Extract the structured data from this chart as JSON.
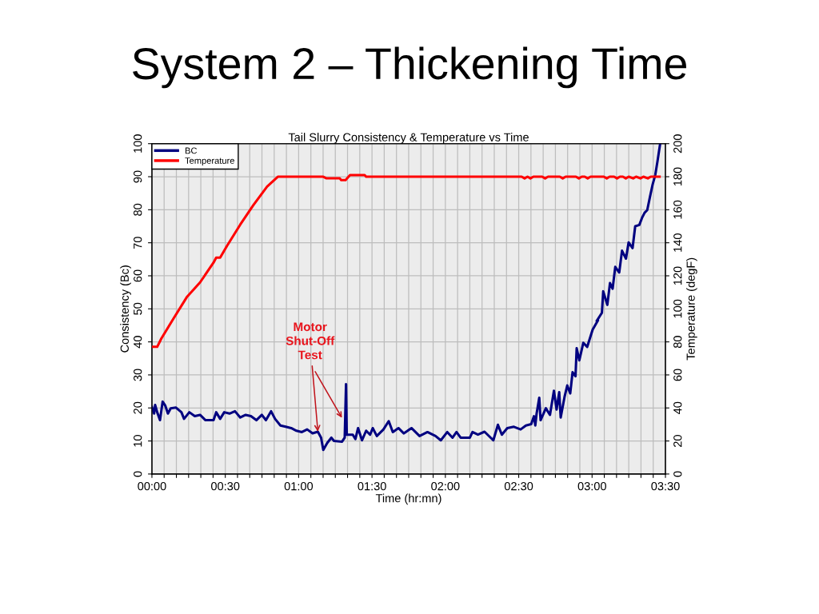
{
  "chart_data": {
    "type": "line",
    "title": "System 2 – Thickening Time",
    "subtitle": "Tail Slurry Consistency & Temperature vs Time",
    "xlabel": "Time (hr:mn)",
    "ylabel": "Consistency (Bc)",
    "y2label": "Temperature (degF)",
    "xlim": [
      0,
      3.5
    ],
    "xticks": [
      {
        "value": 0,
        "label": "00:00"
      },
      {
        "value": 0.0833,
        "label": null
      },
      {
        "value": 0.1667,
        "label": null
      },
      {
        "value": 0.25,
        "label": null
      },
      {
        "value": 0.3333,
        "label": null
      },
      {
        "value": 0.4167,
        "label": null
      },
      {
        "value": 0.5,
        "label": "00:30"
      },
      {
        "value": 0.5833,
        "label": null
      },
      {
        "value": 0.6667,
        "label": null
      },
      {
        "value": 0.75,
        "label": null
      },
      {
        "value": 0.8333,
        "label": null
      },
      {
        "value": 0.9167,
        "label": null
      },
      {
        "value": 1,
        "label": "01:00"
      },
      {
        "value": 1.0833,
        "label": null
      },
      {
        "value": 1.1667,
        "label": null
      },
      {
        "value": 1.25,
        "label": null
      },
      {
        "value": 1.3333,
        "label": null
      },
      {
        "value": 1.4167,
        "label": null
      },
      {
        "value": 1.5,
        "label": "01:30"
      },
      {
        "value": 1.5833,
        "label": null
      },
      {
        "value": 1.6667,
        "label": null
      },
      {
        "value": 1.75,
        "label": null
      },
      {
        "value": 1.8333,
        "label": null
      },
      {
        "value": 1.9167,
        "label": null
      },
      {
        "value": 2,
        "label": "02:00"
      },
      {
        "value": 2.0833,
        "label": null
      },
      {
        "value": 2.1667,
        "label": null
      },
      {
        "value": 2.25,
        "label": null
      },
      {
        "value": 2.3333,
        "label": null
      },
      {
        "value": 2.4167,
        "label": null
      },
      {
        "value": 2.5,
        "label": "02:30"
      },
      {
        "value": 2.5833,
        "label": null
      },
      {
        "value": 2.6667,
        "label": null
      },
      {
        "value": 2.75,
        "label": null
      },
      {
        "value": 2.8333,
        "label": null
      },
      {
        "value": 2.9167,
        "label": null
      },
      {
        "value": 3,
        "label": "03:00"
      },
      {
        "value": 3.0833,
        "label": null
      },
      {
        "value": 3.1667,
        "label": null
      },
      {
        "value": 3.25,
        "label": null
      },
      {
        "value": 3.3333,
        "label": null
      },
      {
        "value": 3.4167,
        "label": null
      },
      {
        "value": 3.5,
        "label": "03:30"
      }
    ],
    "ylim": [
      0,
      100
    ],
    "yticks": [
      0,
      10,
      20,
      30,
      40,
      50,
      60,
      70,
      80,
      90,
      100
    ],
    "y2lim": [
      0,
      200
    ],
    "y2ticks": [
      0,
      20,
      40,
      60,
      80,
      100,
      120,
      140,
      160,
      180,
      200
    ],
    "grid": true,
    "legend": "top left",
    "series": [
      {
        "name": "BC",
        "color": "#000080",
        "x": [
          0,
          0.015,
          0.022,
          0.036,
          0.055,
          0.073,
          0.091,
          0.109,
          0.128,
          0.164,
          0.201,
          0.219,
          0.255,
          0.292,
          0.328,
          0.365,
          0.42,
          0.438,
          0.465,
          0.493,
          0.529,
          0.566,
          0.602,
          0.639,
          0.675,
          0.712,
          0.749,
          0.777,
          0.812,
          0.839,
          0.876,
          0.912,
          0.949,
          0.985,
          1.022,
          1.058,
          1.095,
          1.131,
          1.153,
          1.168,
          1.195,
          1.223,
          1.241,
          1.296,
          1.314,
          1.323,
          1.328,
          1.369,
          1.387,
          1.405,
          1.432,
          1.46,
          1.487,
          1.505,
          1.533,
          1.578,
          1.614,
          1.642,
          1.68,
          1.717,
          1.769,
          1.824,
          1.878,
          1.933,
          1.969,
          2.013,
          2.049,
          2.076,
          2.104,
          2.167,
          2.185,
          2.222,
          2.267,
          2.327,
          2.358,
          2.385,
          2.422,
          2.467,
          2.513,
          2.549,
          2.585,
          2.604,
          2.613,
          2.622,
          2.64,
          2.649,
          2.685,
          2.713,
          2.74,
          2.758,
          2.776,
          2.786,
          2.813,
          2.831,
          2.851,
          2.867,
          2.887,
          2.895,
          2.913,
          2.94,
          2.967,
          3.004,
          3.04,
          3.031,
          3.067,
          3.076,
          3.104,
          3.122,
          3.14,
          3.158,
          3.185,
          3.204,
          3.231,
          3.249,
          3.276,
          3.294,
          3.322,
          3.34,
          3.358,
          3.376,
          3.395,
          3.413,
          3.431,
          3.446,
          3.464
        ],
        "values": [
          20.3,
          18.3,
          20.9,
          18.7,
          16.3,
          21.9,
          20.7,
          18.3,
          19.9,
          20.1,
          18.7,
          16.7,
          18.7,
          17.5,
          17.9,
          16.3,
          16.3,
          18.7,
          16.7,
          18.7,
          18.3,
          19,
          17.1,
          17.9,
          17.5,
          16.3,
          17.9,
          16.3,
          19,
          16.7,
          14.7,
          14.3,
          13.9,
          13.1,
          12.7,
          13.5,
          12.3,
          12.8,
          11,
          7.3,
          9.4,
          11,
          10,
          9.8,
          11,
          27.2,
          11.9,
          11.9,
          10.6,
          13.9,
          10.2,
          13.1,
          11.9,
          13.9,
          11.5,
          13.5,
          16,
          12.7,
          13.9,
          12.3,
          13.9,
          11.5,
          12.7,
          11.5,
          10.2,
          12.7,
          11,
          12.7,
          11,
          11,
          12.7,
          11.9,
          12.8,
          10.2,
          14.9,
          11.9,
          13.9,
          14.3,
          13.5,
          14.7,
          15.1,
          17.5,
          14.7,
          18.3,
          23.1,
          16.3,
          19.9,
          17.9,
          25.2,
          19.5,
          24.8,
          17.1,
          23.5,
          26.8,
          24.4,
          30.8,
          29.6,
          38.1,
          34.4,
          39.7,
          38.5,
          43.7,
          46.5,
          46.3,
          48.8,
          55.3,
          51.2,
          57.8,
          56.1,
          62.7,
          61,
          67.6,
          65.2,
          70.1,
          68.4,
          75,
          75.4,
          77.5,
          79.1,
          79.9,
          84,
          87.7,
          90.6,
          94.7,
          100
        ]
      },
      {
        "name": "Temperature",
        "color": "#ff0000",
        "axis": "y2",
        "x": [
          0,
          0.036,
          0.064,
          0.146,
          0.237,
          0.328,
          0.42,
          0.438,
          0.465,
          0.511,
          0.602,
          0.693,
          0.785,
          0.858,
          1.168,
          1.19,
          1.28,
          1.29,
          1.32,
          1.35,
          1.45,
          1.46,
          2.52,
          2.54,
          2.56,
          2.58,
          2.6,
          2.62,
          2.66,
          2.68,
          2.7,
          2.78,
          2.8,
          2.82,
          2.89,
          2.91,
          2.93,
          2.95,
          2.97,
          2.99,
          3.08,
          3.1,
          3.12,
          3.15,
          3.17,
          3.19,
          3.21,
          3.23,
          3.25,
          3.28,
          3.3,
          3.33,
          3.35,
          3.38,
          3.4,
          3.46
        ],
        "values": [
          77,
          77,
          82,
          94,
          107,
          116,
          128,
          131,
          131,
          138,
          151,
          163,
          174,
          180,
          180,
          179,
          179,
          178,
          178,
          181,
          181,
          180,
          180,
          179,
          180,
          179,
          180,
          180,
          180,
          179,
          180,
          180,
          179,
          180,
          180,
          179,
          180,
          180,
          179,
          180,
          180,
          179,
          180,
          180,
          179,
          180,
          180,
          179,
          180,
          179,
          180,
          179,
          180,
          179,
          180,
          180
        ]
      }
    ],
    "annotations": [
      {
        "text": "Motor\nShut-Off\nTest",
        "x": 1.131,
        "y": 12.8
      }
    ]
  }
}
